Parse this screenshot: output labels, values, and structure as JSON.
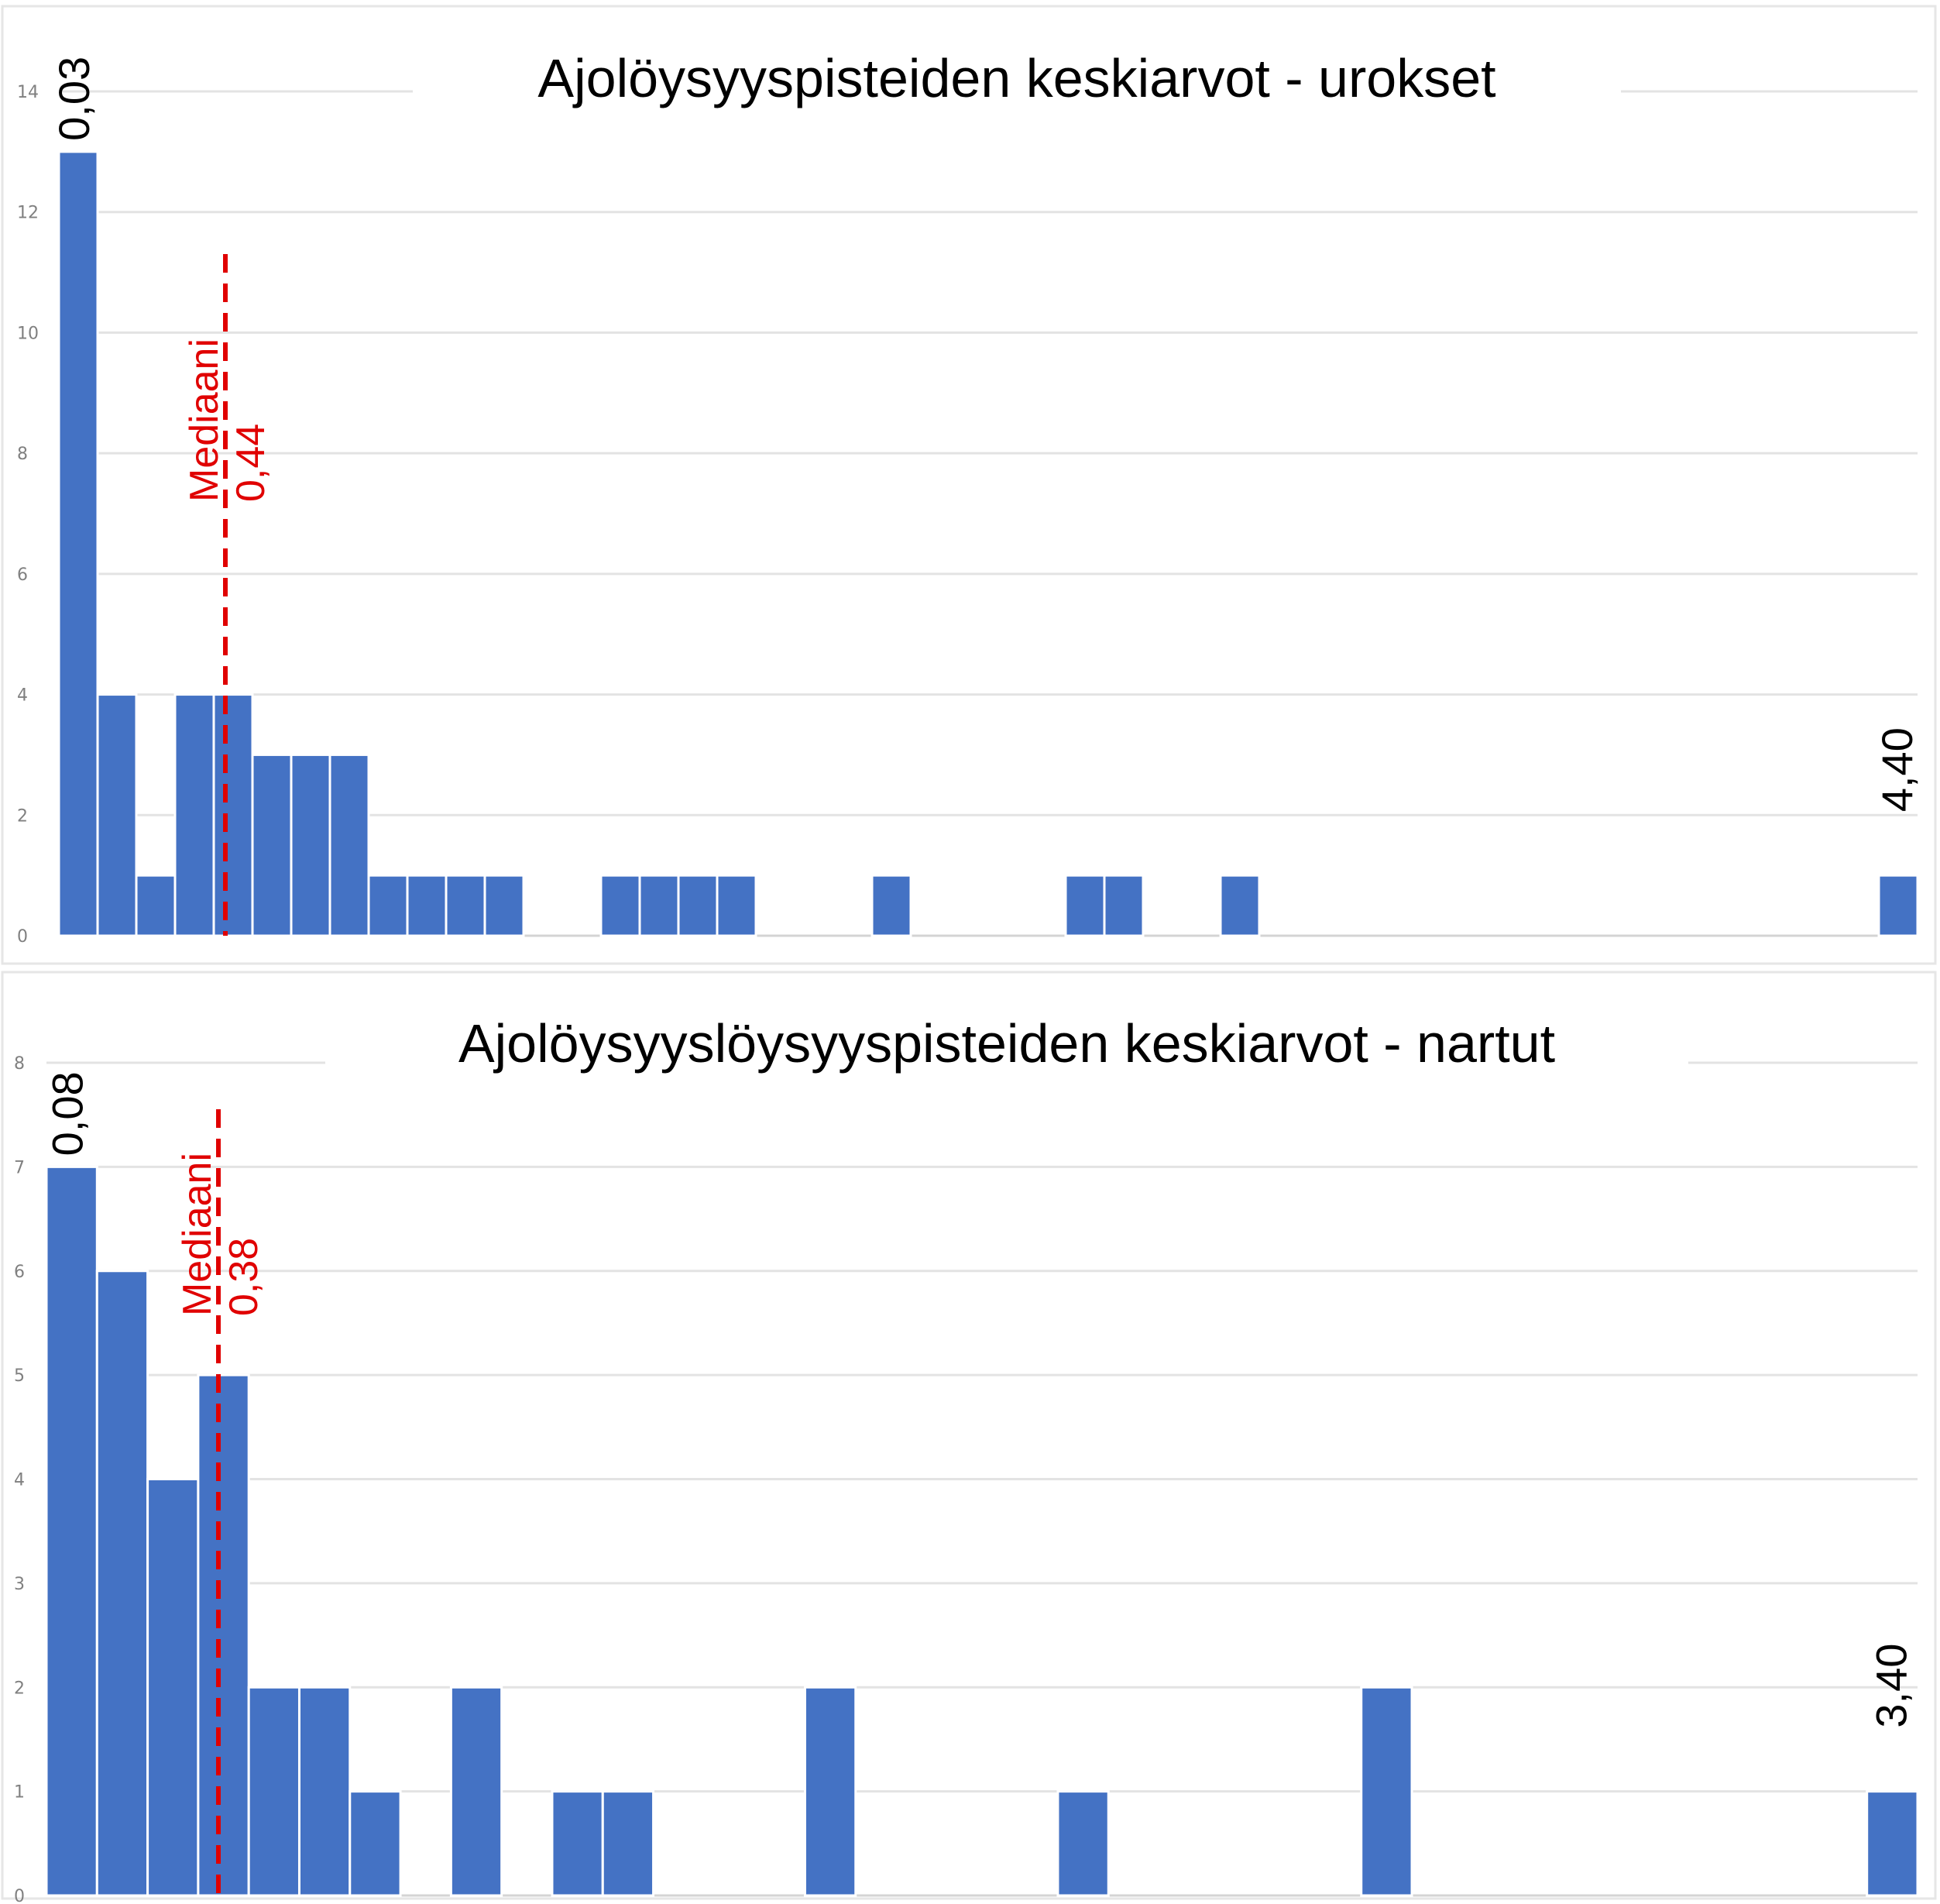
{
  "chart_data": [
    {
      "type": "bar",
      "title": "Ajolöysyyspisteiden keskiarvot - urokset",
      "xlabel": "",
      "ylabel": "",
      "ylim": [
        0,
        14
      ],
      "yticks": [
        0,
        2,
        4,
        6,
        8,
        10,
        12,
        14
      ],
      "grid": true,
      "colors": {
        "bar": "#4472c4",
        "median": "#e00000"
      },
      "values": [
        13,
        4,
        1,
        4,
        4,
        3,
        3,
        3,
        1,
        1,
        1,
        1,
        0,
        0,
        1,
        1,
        1,
        1,
        0,
        0,
        0,
        1,
        0,
        0,
        0,
        0,
        1,
        1,
        0,
        0,
        1,
        0,
        0,
        0,
        0,
        0,
        0,
        0,
        0,
        0,
        0,
        0,
        0,
        0,
        0,
        0,
        0,
        1
      ],
      "min_label": "0,03",
      "max_label": "4,40",
      "median": {
        "label": "Mediaani",
        "value_label": "0,44",
        "bin_position": 4.3
      }
    },
    {
      "type": "bar",
      "title": "Ajolöysyyslöysyyspisteiden keskiarvot - nartut",
      "xlabel": "",
      "ylabel": "",
      "ylim": [
        0,
        8
      ],
      "yticks": [
        0,
        1,
        2,
        3,
        4,
        5,
        6,
        7,
        8
      ],
      "grid": true,
      "colors": {
        "bar": "#4472c4",
        "median": "#e00000"
      },
      "values": [
        7,
        6,
        4,
        5,
        2,
        2,
        1,
        0,
        2,
        0,
        1,
        1,
        0,
        0,
        0,
        2,
        0,
        0,
        0,
        0,
        1,
        0,
        0,
        0,
        0,
        0,
        2,
        0,
        0,
        0,
        0,
        0,
        0,
        0,
        0,
        0,
        1
      ],
      "min_label": "0,08",
      "max_label": "3,40",
      "median": {
        "label": "Mediaani",
        "value_label": "0,38",
        "bin_position": 3.4
      }
    }
  ]
}
